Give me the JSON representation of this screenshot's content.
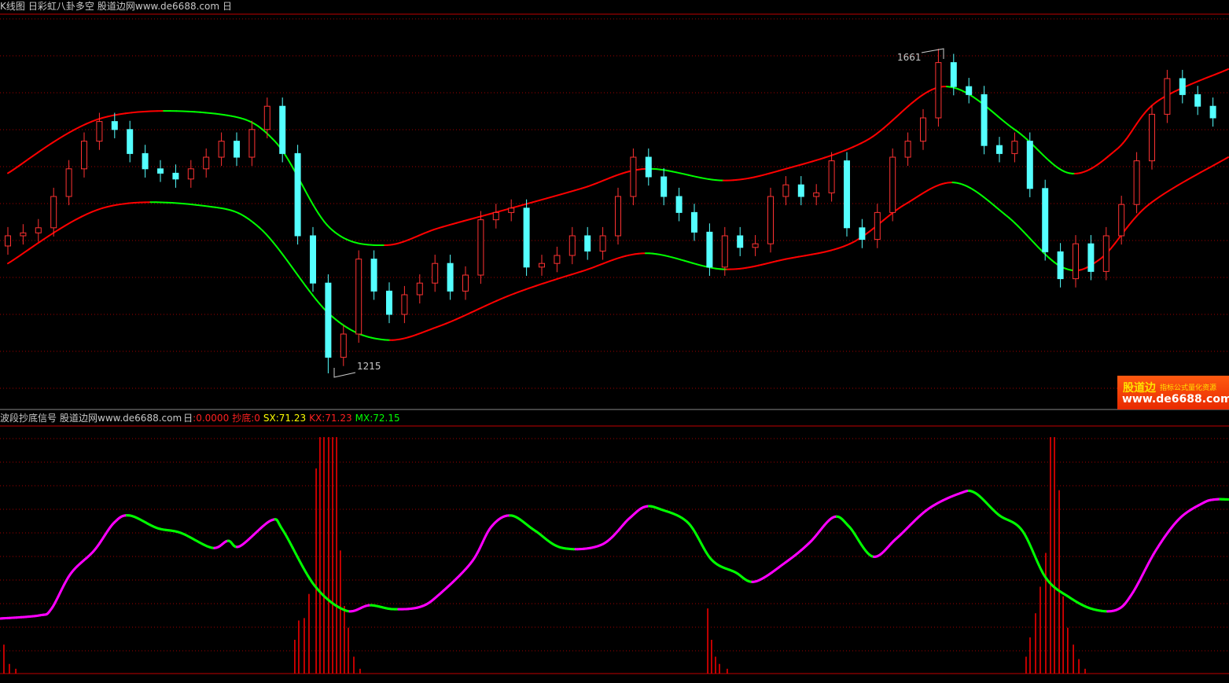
{
  "top_header": {
    "parts": [
      "K线图",
      "日彩虹八卦多空",
      "股道边网www.de6688.com",
      "日"
    ]
  },
  "bottom_header": {
    "name": "波段抄底信号",
    "site": "股道边网www.de6688.com",
    "period": "日",
    "value0": ":0.0000",
    "chaodi": "抄底:0",
    "sx": "SX:71.23",
    "kx": "KX:71.23",
    "mx": "MX:72.15"
  },
  "logo": {
    "brand": "股道边",
    "tagline": "指标公式量化资源",
    "url": "www.de6688.com"
  },
  "colors": {
    "up": "#ff3232",
    "down": "#54ffff",
    "band_rising": "#ff0000",
    "band_falling": "#00ff00",
    "osc_rising": "#ff00ff",
    "osc_falling": "#00ff00",
    "bars": "#ff0000",
    "sx": "#ffff00",
    "kx": "#ff0000",
    "mx": "#00ff00"
  },
  "chart_data": [
    {
      "type": "candlestick",
      "title": "K线图",
      "ylim": [
        1160,
        1690
      ],
      "grid": true,
      "max_label": "1661",
      "min_label": "1215",
      "open": [
        1390,
        1404,
        1408,
        1415,
        1458,
        1496,
        1534,
        1561,
        1550,
        1517,
        1496,
        1490,
        1482,
        1496,
        1512,
        1534,
        1512,
        1550,
        1582,
        1517,
        1404,
        1339,
        1237,
        1269,
        1372,
        1328,
        1296,
        1323,
        1339,
        1366,
        1328,
        1350,
        1426,
        1436,
        1442,
        1361,
        1366,
        1377,
        1404,
        1383,
        1404,
        1458,
        1512,
        1485,
        1458,
        1436,
        1409,
        1361,
        1404,
        1388,
        1393,
        1458,
        1474,
        1458,
        1463,
        1507,
        1415,
        1399,
        1436,
        1512,
        1534,
        1566,
        1642,
        1609,
        1598,
        1528,
        1517,
        1534,
        1469,
        1382,
        1345,
        1393,
        1355,
        1404,
        1447,
        1507,
        1571,
        1620,
        1598,
        1582
      ],
      "close": [
        1404,
        1408,
        1415,
        1458,
        1496,
        1534,
        1561,
        1550,
        1517,
        1496,
        1490,
        1482,
        1496,
        1512,
        1534,
        1512,
        1550,
        1582,
        1517,
        1404,
        1339,
        1237,
        1269,
        1372,
        1328,
        1296,
        1323,
        1339,
        1366,
        1328,
        1350,
        1426,
        1436,
        1442,
        1361,
        1366,
        1377,
        1404,
        1383,
        1404,
        1458,
        1512,
        1485,
        1458,
        1436,
        1409,
        1361,
        1404,
        1388,
        1393,
        1458,
        1474,
        1458,
        1463,
        1507,
        1415,
        1399,
        1436,
        1512,
        1534,
        1566,
        1642,
        1609,
        1598,
        1528,
        1517,
        1534,
        1469,
        1382,
        1345,
        1393,
        1355,
        1404,
        1447,
        1507,
        1571,
        1620,
        1598,
        1582,
        1566
      ],
      "high": [
        1416,
        1420,
        1427,
        1470,
        1508,
        1546,
        1573,
        1573,
        1562,
        1529,
        1508,
        1502,
        1508,
        1524,
        1546,
        1546,
        1562,
        1594,
        1594,
        1529,
        1416,
        1351,
        1281,
        1384,
        1384,
        1340,
        1335,
        1351,
        1378,
        1378,
        1362,
        1438,
        1448,
        1454,
        1454,
        1378,
        1389,
        1416,
        1416,
        1416,
        1470,
        1524,
        1524,
        1497,
        1470,
        1448,
        1421,
        1416,
        1416,
        1405,
        1470,
        1486,
        1486,
        1475,
        1519,
        1519,
        1427,
        1448,
        1524,
        1546,
        1578,
        1661,
        1654,
        1621,
        1610,
        1540,
        1546,
        1546,
        1481,
        1394,
        1405,
        1405,
        1416,
        1459,
        1519,
        1583,
        1632,
        1632,
        1610,
        1594
      ],
      "low": [
        1378,
        1392,
        1396,
        1403,
        1446,
        1484,
        1522,
        1538,
        1505,
        1484,
        1478,
        1470,
        1470,
        1484,
        1500,
        1500,
        1500,
        1538,
        1505,
        1392,
        1327,
        1215,
        1225,
        1257,
        1316,
        1284,
        1284,
        1311,
        1327,
        1316,
        1316,
        1338,
        1414,
        1424,
        1349,
        1349,
        1354,
        1365,
        1371,
        1371,
        1392,
        1446,
        1473,
        1446,
        1424,
        1397,
        1349,
        1349,
        1376,
        1376,
        1381,
        1446,
        1446,
        1446,
        1451,
        1403,
        1387,
        1387,
        1424,
        1500,
        1522,
        1554,
        1597,
        1586,
        1516,
        1505,
        1505,
        1457,
        1370,
        1333,
        1333,
        1343,
        1343,
        1392,
        1435,
        1495,
        1559,
        1586,
        1570,
        1554
      ],
      "upper_band": [
        [
          0,
          1490
        ],
        [
          6.2,
          1566
        ],
        [
          13.9,
          1571
        ],
        [
          17.5,
          1534
        ],
        [
          21.1,
          1415
        ],
        [
          24.7,
          1391
        ],
        [
          28.3,
          1415
        ],
        [
          33,
          1442
        ],
        [
          37.6,
          1469
        ],
        [
          41.8,
          1496
        ],
        [
          46.9,
          1480
        ],
        [
          51,
          1496
        ],
        [
          56.2,
          1534
        ],
        [
          61.3,
          1609
        ],
        [
          66,
          1550
        ],
        [
          69.6,
          1490
        ],
        [
          72.7,
          1523
        ],
        [
          75.3,
          1588
        ],
        [
          80,
          1633
        ]
      ],
      "lower_band": [
        [
          0,
          1366
        ],
        [
          6.2,
          1442
        ],
        [
          12.9,
          1445
        ],
        [
          16.5,
          1415
        ],
        [
          21.1,
          1296
        ],
        [
          24.7,
          1261
        ],
        [
          28.3,
          1280
        ],
        [
          33,
          1323
        ],
        [
          37.6,
          1355
        ],
        [
          41.8,
          1380
        ],
        [
          46.9,
          1358
        ],
        [
          51,
          1372
        ],
        [
          55.2,
          1393
        ],
        [
          58.8,
          1447
        ],
        [
          62.1,
          1477
        ],
        [
          65.5,
          1431
        ],
        [
          69.1,
          1361
        ],
        [
          71.6,
          1372
        ],
        [
          74.8,
          1447
        ],
        [
          80,
          1512
        ]
      ]
    },
    {
      "type": "line",
      "title": "波段抄底信号",
      "ylim": [
        0,
        100
      ],
      "grid": true,
      "oscillator": [
        [
          -0.52,
          22.8
        ],
        [
          2.06,
          24.1
        ],
        [
          2.84,
          26.7
        ],
        [
          4.12,
          41.4
        ],
        [
          5.67,
          51.1
        ],
        [
          6.96,
          62.5
        ],
        [
          7.99,
          65.5
        ],
        [
          9.79,
          60.3
        ],
        [
          11.34,
          58.3
        ],
        [
          13.4,
          52.1
        ],
        [
          14.43,
          55.0
        ],
        [
          15.21,
          52.8
        ],
        [
          17.27,
          63.5
        ],
        [
          18.04,
          59.3
        ],
        [
          20.1,
          36.5
        ],
        [
          22.16,
          26.1
        ],
        [
          23.71,
          28.3
        ],
        [
          25.26,
          26.7
        ],
        [
          27.06,
          27.7
        ],
        [
          28.35,
          33.2
        ],
        [
          30.41,
          46.3
        ],
        [
          31.7,
          60.9
        ],
        [
          32.99,
          65.5
        ],
        [
          34.54,
          59.3
        ],
        [
          36.34,
          52.1
        ],
        [
          38.92,
          53.4
        ],
        [
          40.72,
          64.2
        ],
        [
          41.75,
          69.1
        ],
        [
          42.78,
          68.1
        ],
        [
          44.59,
          62.5
        ],
        [
          46.13,
          47.2
        ],
        [
          47.68,
          42.0
        ],
        [
          48.97,
          38.1
        ],
        [
          51.03,
          46.3
        ],
        [
          52.58,
          54.4
        ],
        [
          54.12,
          64.8
        ],
        [
          55.15,
          60.9
        ],
        [
          56.7,
          48.5
        ],
        [
          58.25,
          56.0
        ],
        [
          60.31,
          68.1
        ],
        [
          62.37,
          74.6
        ],
        [
          63.4,
          74.9
        ],
        [
          64.95,
          65.8
        ],
        [
          66.49,
          59.3
        ],
        [
          68.04,
          39.7
        ],
        [
          69.59,
          31.6
        ],
        [
          71.13,
          26.7
        ],
        [
          72.68,
          26.4
        ],
        [
          73.71,
          33.2
        ],
        [
          75.26,
          51.1
        ],
        [
          76.8,
          64.2
        ],
        [
          78.35,
          70.7
        ],
        [
          79.12,
          72.15
        ],
        [
          80.05,
          72.15
        ]
      ],
      "bars": [
        [
          -0.26,
          12
        ],
        [
          0.1,
          4
        ],
        [
          0.52,
          2
        ],
        [
          18.81,
          14
        ],
        [
          19.07,
          22
        ],
        [
          19.43,
          23
        ],
        [
          19.74,
          33
        ],
        [
          20.21,
          85
        ],
        [
          20.46,
          98
        ],
        [
          20.72,
          98
        ],
        [
          21.03,
          98
        ],
        [
          21.29,
          98
        ],
        [
          21.55,
          98
        ],
        [
          21.8,
          51
        ],
        [
          22.06,
          28
        ],
        [
          22.32,
          19
        ],
        [
          22.68,
          7
        ],
        [
          23.09,
          2
        ],
        [
          45.88,
          27
        ],
        [
          46.13,
          14
        ],
        [
          46.39,
          7
        ],
        [
          46.65,
          4
        ],
        [
          47.16,
          2
        ],
        [
          66.75,
          7
        ],
        [
          67.01,
          15
        ],
        [
          67.37,
          25
        ],
        [
          67.68,
          36
        ],
        [
          68.04,
          50
        ],
        [
          68.35,
          98
        ],
        [
          68.61,
          98
        ],
        [
          68.92,
          76
        ],
        [
          69.18,
          32
        ],
        [
          69.48,
          19
        ],
        [
          69.85,
          12
        ],
        [
          70.21,
          6
        ],
        [
          70.62,
          2
        ]
      ]
    }
  ]
}
